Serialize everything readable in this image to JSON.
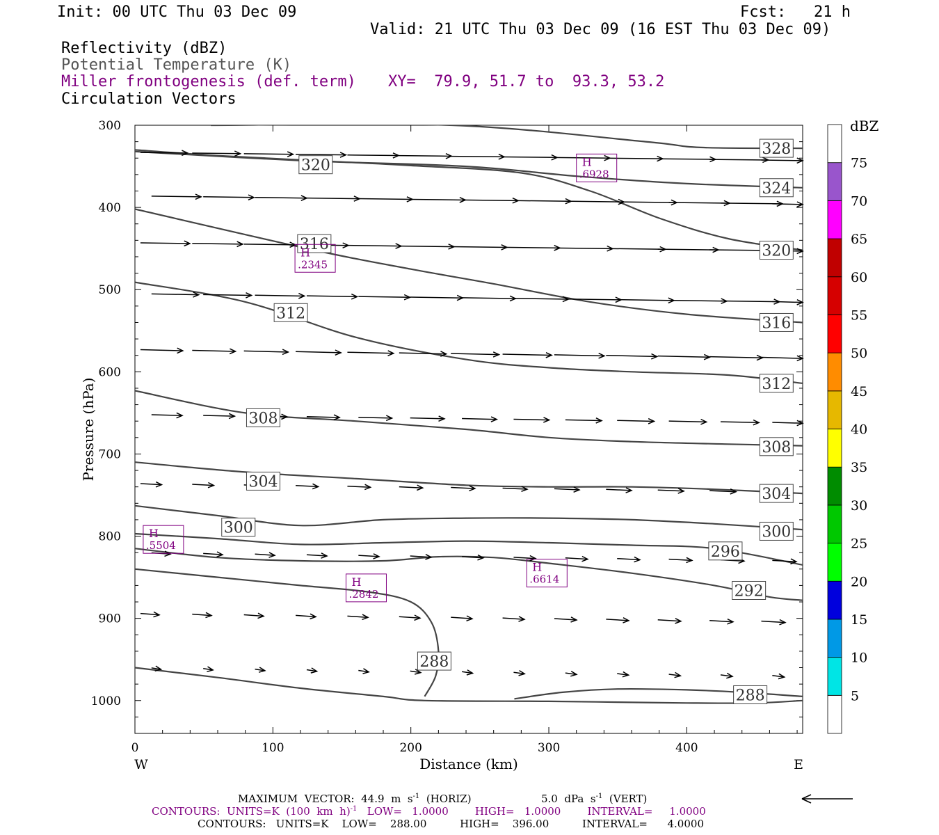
{
  "header": {
    "init": "Init: 00 UTC Thu 03 Dec 09",
    "fcst": "Fcst:   21 h",
    "valid": "Valid: 21 UTC Thu 03 Dec 09 (16 EST Thu 03 Dec 09)"
  },
  "fields": {
    "reflectivity": "Reflectivity (dBZ)",
    "theta": "Potential Temperature (K)",
    "frontogenesis": "Miller frontogenesis (def. term)",
    "xy": "XY=  79.9, 51.7 to  93.3, 53.2",
    "vectors": "Circulation Vectors"
  },
  "colors": {
    "theta_contour": "#444444",
    "frontogenesis": "#800080",
    "vectors": "#000000"
  },
  "chart_data": {
    "type": "line",
    "xlabel": "Distance (km)",
    "ylabel": "Pressure (hPa)",
    "xlim": [
      0,
      484
    ],
    "ylim": [
      300,
      1040
    ],
    "y_reversed": true,
    "x_ticks": [
      0,
      100,
      200,
      300,
      400
    ],
    "y_ticks": [
      300,
      400,
      500,
      600,
      700,
      800,
      900,
      1000
    ],
    "x_end_labels": {
      "left": "W",
      "right": "E"
    },
    "series": [
      {
        "label": "328",
        "x": [
          55,
          230,
          370,
          410,
          484
        ],
        "y": [
          300,
          300,
          320,
          327,
          328
        ]
      },
      {
        "label": "324",
        "x": [
          0,
          120,
          240,
          320,
          400,
          484
        ],
        "y": [
          332,
          343,
          350,
          362,
          371,
          376
        ]
      },
      {
        "label": "320",
        "x": [
          0,
          130,
          200,
          260,
          330,
          400,
          484
        ],
        "y": [
          402,
          452,
          475,
          493,
          515,
          530,
          540
        ]
      },
      {
        "label": "316",
        "x": [
          0,
          60,
          130,
          200,
          280,
          330,
          380,
          430,
          484
        ],
        "y": [
          330,
          337,
          343,
          349,
          358,
          380,
          413,
          438,
          452
        ]
      },
      {
        "label": "312",
        "x": [
          0,
          80,
          160,
          240,
          300,
          360,
          430,
          484
        ],
        "y": [
          491,
          515,
          558,
          585,
          595,
          600,
          604,
          614
        ]
      },
      {
        "label": "308",
        "x": [
          0,
          80,
          160,
          240,
          300,
          360,
          430,
          484
        ],
        "y": [
          623,
          650,
          660,
          670,
          680,
          685,
          688,
          690
        ]
      },
      {
        "label": "304",
        "x": [
          0,
          80,
          160,
          240,
          300,
          360,
          420,
          484
        ],
        "y": [
          710,
          722,
          730,
          738,
          740,
          740,
          743,
          748
        ]
      },
      {
        "label": "300",
        "x": [
          0,
          60,
          120,
          180,
          240,
          300,
          360,
          420,
          484
        ],
        "y": [
          763,
          775,
          787,
          780,
          778,
          778,
          780,
          785,
          792
        ]
      },
      {
        "label": "296",
        "x": [
          0,
          60,
          120,
          180,
          240,
          300,
          360,
          420,
          484
        ],
        "y": [
          797,
          803,
          810,
          808,
          806,
          808,
          811,
          815,
          835
        ]
      },
      {
        "label": "292",
        "x": [
          0,
          60,
          120,
          180,
          220,
          260,
          300,
          360,
          420,
          460,
          484
        ],
        "y": [
          815,
          826,
          830,
          830,
          825,
          826,
          833,
          845,
          860,
          874,
          878
        ]
      },
      {
        "label": "288",
        "x": [
          0,
          60,
          120,
          170,
          200,
          215,
          220,
          218,
          210
        ],
        "y": [
          840,
          850,
          860,
          868,
          880,
          905,
          940,
          970,
          995
        ]
      },
      {
        "label": "288",
        "x": [
          0,
          60,
          120,
          180,
          210,
          300,
          350,
          400,
          450,
          484
        ],
        "y": [
          960,
          972,
          985,
          995,
          1000,
          1001,
          1002,
          1003,
          1003,
          1000
        ]
      },
      {
        "label": "288",
        "x": [
          275,
          310,
          350,
          400,
          440,
          484
        ],
        "y": [
          998,
          990,
          986,
          987,
          990,
          995
        ]
      }
    ],
    "frontogenesis_maxima": [
      {
        "label": "H",
        "value": ".6928",
        "x": 320,
        "y": 335
      },
      {
        "label": "H",
        "value": ".2345",
        "x": 116,
        "y": 445
      },
      {
        "label": "H",
        "value": ".5504",
        "x": 6,
        "y": 787
      },
      {
        "label": "H",
        "value": ".2842",
        "x": 153,
        "y": 846
      },
      {
        "label": "H",
        "value": ".6614",
        "x": 284,
        "y": 828
      }
    ],
    "vector_rows": [
      {
        "p": 333,
        "length_km": 40,
        "dip": 0.8
      },
      {
        "p": 386,
        "length_km": 42,
        "dip": 1.0
      },
      {
        "p": 443,
        "length_km": 42,
        "dip": 1.0
      },
      {
        "p": 505,
        "length_km": 40,
        "dip": 1.2
      },
      {
        "p": 573,
        "length_km": 36,
        "dip": 1.6
      },
      {
        "p": 652,
        "length_km": 26,
        "dip": 1.2
      },
      {
        "p": 736,
        "length_km": 18,
        "dip": 1.6
      },
      {
        "p": 820,
        "length_km": 16,
        "dip": 1.8
      },
      {
        "p": 894,
        "length_km": 16,
        "dip": 2.0
      },
      {
        "p": 960,
        "length_km": 8,
        "dip": 2.2
      }
    ],
    "colorbar": {
      "title": "dBZ",
      "levels": [
        5,
        10,
        15,
        20,
        25,
        30,
        35,
        40,
        45,
        50,
        55,
        60,
        65,
        70,
        75
      ],
      "colors": [
        "#ffffff",
        "#00e5e5",
        "#0099e6",
        "#0000dd",
        "#00ff00",
        "#00c800",
        "#008c00",
        "#ffff00",
        "#e6b800",
        "#ff8c00",
        "#ff0000",
        "#d60000",
        "#c00000",
        "#ff00ff",
        "#9955cc",
        "#ffffff"
      ]
    }
  },
  "footer": {
    "maxvec_a": "MAXIMUM  VECTOR:  44.9  m  s",
    "maxvec_b": "(HORIZ)",
    "maxvec_c": "5.0  dPa  s",
    "maxvec_d": "(VERT)",
    "sup": "-1",
    "contours1_a": "CONTOURS:  UNITS=K  (100  km  h)",
    "contours1_b": "LOW=   1.0000        HIGH=   1.0000        INTERVAL=     1.0000",
    "contours2": "CONTOURS:   UNITS=K    LOW=    288.00          HIGH=    396.00          INTERVAL=      4.0000"
  }
}
